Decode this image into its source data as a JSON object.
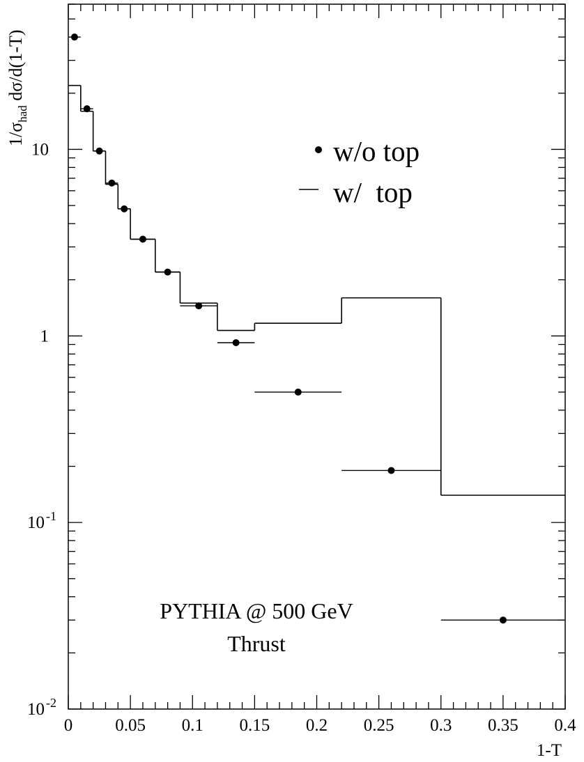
{
  "chart_data": {
    "type": "scatter",
    "xlabel": "1-T",
    "ylabel": {
      "prefix": "1/σ",
      "sub": "had",
      "suffix": " dσ/d(1-T)"
    },
    "xlim": [
      0,
      0.4
    ],
    "ylim": [
      0.01,
      60
    ],
    "yscale": "log",
    "x_ticks": [
      {
        "v": 0,
        "label": "0"
      },
      {
        "v": 0.05,
        "label": "0.05"
      },
      {
        "v": 0.1,
        "label": "0.1"
      },
      {
        "v": 0.15,
        "label": "0.15"
      },
      {
        "v": 0.2,
        "label": "0.2"
      },
      {
        "v": 0.25,
        "label": "0.25"
      },
      {
        "v": 0.3,
        "label": "0.3"
      },
      {
        "v": 0.35,
        "label": "0.35"
      },
      {
        "v": 0.4,
        "label": "0.4"
      }
    ],
    "y_ticks": [
      {
        "v": 0.01,
        "base": "10",
        "exp": "-2"
      },
      {
        "v": 0.1,
        "base": "10",
        "exp": "-1"
      },
      {
        "v": 1,
        "base": "1",
        "exp": ""
      },
      {
        "v": 10,
        "base": "10",
        "exp": ""
      }
    ],
    "legend": {
      "placement": "top-right",
      "entries": [
        {
          "label": "w/o top",
          "marker": "dot"
        },
        {
          "label": "w/  top",
          "marker": "line"
        }
      ]
    },
    "annotations": [
      "PYTHIA @ 500 GeV",
      "Thrust"
    ],
    "series": [
      {
        "kind": "points",
        "points": [
          {
            "x": 0.005,
            "xlo": 0.0,
            "xhi": 0.01,
            "y": 40
          },
          {
            "x": 0.015,
            "xlo": 0.01,
            "xhi": 0.02,
            "y": 16.5
          },
          {
            "x": 0.025,
            "xlo": 0.02,
            "xhi": 0.03,
            "y": 9.8
          },
          {
            "x": 0.035,
            "xlo": 0.03,
            "xhi": 0.04,
            "y": 6.6
          },
          {
            "x": 0.045,
            "xlo": 0.04,
            "xhi": 0.05,
            "y": 4.8
          },
          {
            "x": 0.06,
            "xlo": 0.05,
            "xhi": 0.07,
            "y": 3.3
          },
          {
            "x": 0.08,
            "xlo": 0.07,
            "xhi": 0.09,
            "y": 2.2
          },
          {
            "x": 0.105,
            "xlo": 0.09,
            "xhi": 0.12,
            "y": 1.45
          },
          {
            "x": 0.135,
            "xlo": 0.12,
            "xhi": 0.15,
            "y": 0.92
          },
          {
            "x": 0.185,
            "xlo": 0.15,
            "xhi": 0.22,
            "y": 0.5
          },
          {
            "x": 0.26,
            "xlo": 0.22,
            "xhi": 0.3,
            "y": 0.19
          },
          {
            "x": 0.35,
            "xlo": 0.3,
            "xhi": 0.4,
            "y": 0.03
          }
        ]
      },
      {
        "kind": "histogram",
        "bins": [
          {
            "lo": 0.0,
            "hi": 0.01,
            "y": 22
          },
          {
            "lo": 0.01,
            "hi": 0.02,
            "y": 16
          },
          {
            "lo": 0.02,
            "hi": 0.03,
            "y": 9.8
          },
          {
            "lo": 0.03,
            "hi": 0.04,
            "y": 6.5
          },
          {
            "lo": 0.04,
            "hi": 0.05,
            "y": 4.8
          },
          {
            "lo": 0.05,
            "hi": 0.07,
            "y": 3.3
          },
          {
            "lo": 0.07,
            "hi": 0.09,
            "y": 2.2
          },
          {
            "lo": 0.09,
            "hi": 0.12,
            "y": 1.5
          },
          {
            "lo": 0.12,
            "hi": 0.15,
            "y": 1.07
          },
          {
            "lo": 0.15,
            "hi": 0.22,
            "y": 1.17
          },
          {
            "lo": 0.22,
            "hi": 0.3,
            "y": 1.6
          },
          {
            "lo": 0.3,
            "hi": 0.4,
            "y": 0.14
          }
        ]
      }
    ]
  }
}
